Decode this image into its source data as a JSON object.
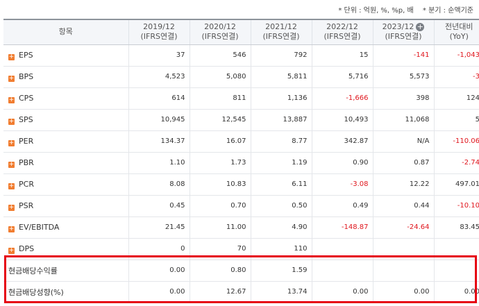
{
  "units": {
    "unit_note": "* 단위 : 억원, %, %p, 배",
    "period_note": "* 분기 : 순액기준"
  },
  "header": {
    "item": "항목",
    "columns": [
      {
        "period": "2019/12",
        "basis": "(IFRS연결)"
      },
      {
        "period": "2020/12",
        "basis": "(IFRS연결)"
      },
      {
        "period": "2021/12",
        "basis": "(IFRS연결)"
      },
      {
        "period": "2022/12",
        "basis": "(IFRS연결)"
      },
      {
        "period": "2023/12",
        "basis": "(IFRS연결)"
      }
    ],
    "yoy_title": "전년대비",
    "yoy_sub": "(YoY)"
  },
  "rows": [
    {
      "label": "EPS",
      "values": [
        "37",
        "546",
        "792",
        "15",
        "-141",
        "-1,043"
      ]
    },
    {
      "label": "BPS",
      "values": [
        "4,523",
        "5,080",
        "5,811",
        "5,716",
        "5,573",
        "-3"
      ]
    },
    {
      "label": "CPS",
      "values": [
        "614",
        "811",
        "1,136",
        "-1,666",
        "398",
        "124"
      ]
    },
    {
      "label": "SPS",
      "values": [
        "10,945",
        "12,545",
        "13,887",
        "10,493",
        "11,068",
        "5"
      ]
    },
    {
      "label": "PER",
      "values": [
        "134.37",
        "16.07",
        "8.77",
        "342.87",
        "N/A",
        "-110.06"
      ]
    },
    {
      "label": "PBR",
      "values": [
        "1.10",
        "1.73",
        "1.19",
        "0.90",
        "0.87",
        "-2.74"
      ]
    },
    {
      "label": "PCR",
      "values": [
        "8.08",
        "10.83",
        "6.11",
        "-3.08",
        "12.22",
        "497.01"
      ]
    },
    {
      "label": "PSR",
      "values": [
        "0.45",
        "0.70",
        "0.50",
        "0.49",
        "0.44",
        "-10.10"
      ]
    },
    {
      "label": "EV/EBITDA",
      "values": [
        "21.45",
        "11.00",
        "4.90",
        "-148.87",
        "-24.64",
        "83.45"
      ]
    },
    {
      "label": "DPS",
      "values": [
        "0",
        "70",
        "110",
        "",
        "",
        ""
      ]
    }
  ],
  "sub_rows": [
    {
      "label": "현금배당수익률",
      "values": [
        "0.00",
        "0.80",
        "1.59",
        "",
        "",
        ""
      ]
    },
    {
      "label": "현금배당성향(%)",
      "values": [
        "0.00",
        "12.67",
        "13.74",
        "0.00",
        "0.00",
        "0.00"
      ]
    }
  ],
  "colors": {
    "negative": "#e0161d",
    "highlight_border": "#e60012",
    "expand_icon": "#f17d30"
  }
}
